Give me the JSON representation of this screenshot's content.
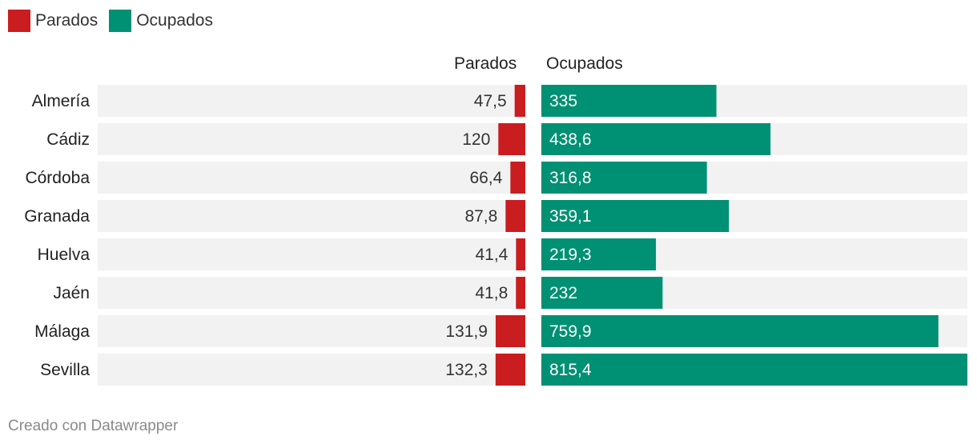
{
  "colors": {
    "parados": "#c91d1f",
    "ocupados": "#009073",
    "track": "#f2f2f2"
  },
  "legend": [
    {
      "label": "Parados",
      "color": "#c91d1f"
    },
    {
      "label": "Ocupados",
      "color": "#009073"
    }
  ],
  "chart_data": {
    "type": "bar",
    "orientation": "horizontal",
    "categories": [
      "Almería",
      "Cádiz",
      "Córdoba",
      "Granada",
      "Huelva",
      "Jaén",
      "Málaga",
      "Sevilla"
    ],
    "series": [
      {
        "name": "Parados",
        "values": [
          47.5,
          120,
          66.4,
          87.8,
          41.4,
          41.8,
          131.9,
          132.3
        ],
        "labels": [
          "47,5",
          "120",
          "66,4",
          "87,8",
          "41,4",
          "41,8",
          "131,9",
          "132,3"
        ]
      },
      {
        "name": "Ocupados",
        "values": [
          335,
          438.6,
          316.8,
          359.1,
          219.3,
          232,
          759.9,
          815.4
        ],
        "labels": [
          "335",
          "438,6",
          "316,8",
          "359,1",
          "219,3",
          "232",
          "759,9",
          "815,4"
        ]
      }
    ],
    "xlim_parados": [
      0,
      1900
    ],
    "xlim_ocupados": [
      0,
      815.4
    ],
    "legend_position": "top-left"
  },
  "column_headers": {
    "parados": "Parados",
    "ocupados": "Ocupados"
  },
  "footer": "Creado con Datawrapper"
}
